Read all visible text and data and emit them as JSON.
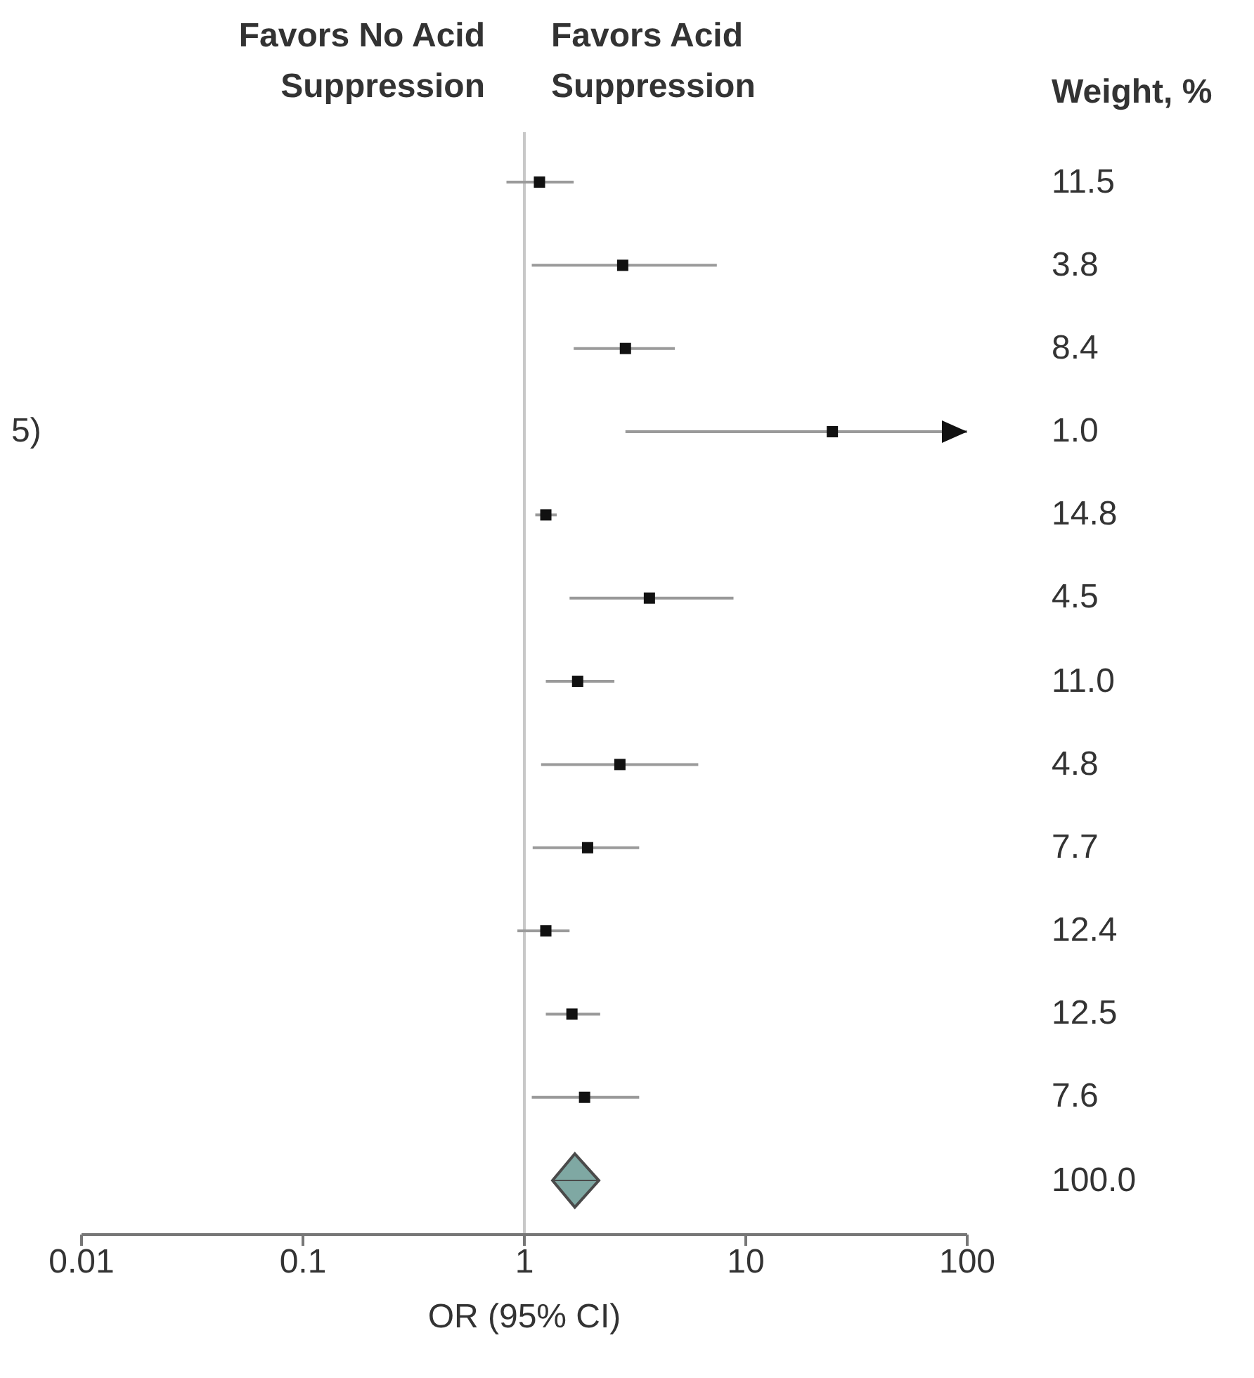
{
  "chart_data": {
    "type": "scatter",
    "orientation": "horizontal",
    "xlabel": "OR (95% CI)",
    "log": "x",
    "xlim": [
      0.01,
      100
    ],
    "xticks": [
      0.01,
      0.1,
      1,
      10,
      100
    ],
    "grid": false,
    "legend": false,
    "categories": [
      null,
      null,
      null,
      "5)",
      null,
      null,
      null,
      null,
      null,
      null,
      null,
      null,
      null
    ],
    "annotations": [
      "Favors No Acid Suppression",
      "Favors Acid Suppression",
      "Weight, %",
      "11.5",
      "3.8",
      "8.4",
      "1.0",
      "14.8",
      "4.5",
      "11.0",
      "4.8",
      "7.7",
      "12.4",
      "12.5",
      "7.6",
      "100.0"
    ],
    "ref_lines": [
      {
        "axis": "x",
        "value": 1,
        "color": "#c8c8c8"
      }
    ],
    "series": [
      {
        "type": "scatter",
        "marker": "square",
        "color": "#111111",
        "values": [
          1.17,
          2.78,
          2.86,
          24.6,
          1.25,
          3.67,
          1.74,
          2.7,
          1.93,
          1.25,
          1.64,
          1.87,
          null
        ],
        "errors": [
          [
            0.83,
            1.67
          ],
          [
            1.08,
            7.4
          ],
          [
            1.67,
            4.78
          ],
          [
            2.86,
            100
          ],
          [
            1.12,
            1.4
          ],
          [
            1.6,
            8.8
          ],
          [
            1.25,
            2.55
          ],
          [
            1.19,
            6.1
          ],
          [
            1.09,
            3.3
          ],
          [
            0.93,
            1.6
          ],
          [
            1.25,
            2.2
          ],
          [
            1.08,
            3.3
          ],
          null
        ]
      },
      {
        "type": "scatter",
        "marker": "diamond",
        "color": "#7fa8a3",
        "values": [
          null,
          null,
          null,
          null,
          null,
          null,
          null,
          null,
          null,
          null,
          null,
          null,
          1.69
        ],
        "errors": [
          null,
          null,
          null,
          null,
          null,
          null,
          null,
          null,
          null,
          null,
          null,
          null,
          [
            1.34,
            2.17
          ]
        ]
      }
    ]
  }
}
